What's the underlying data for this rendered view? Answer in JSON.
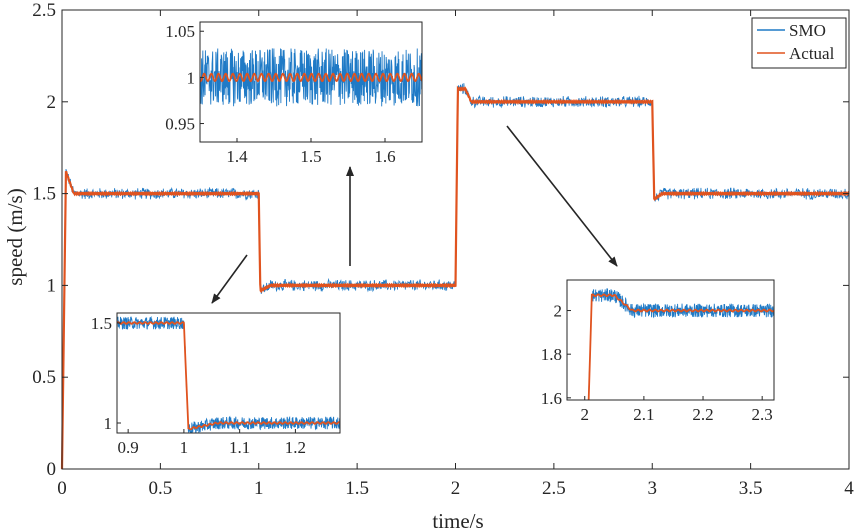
{
  "chart_data": {
    "type": "line",
    "xlabel": "time/s",
    "ylabel": "speed (m/s)",
    "xlim": [
      0,
      4
    ],
    "ylim": [
      0,
      2.5
    ],
    "x_ticks": [
      "0",
      "0.5",
      "1",
      "1.5",
      "2",
      "2.5",
      "3",
      "3.5",
      "4"
    ],
    "y_ticks": [
      "0",
      "0.5",
      "1",
      "1.5",
      "2",
      "2.5"
    ],
    "legend": {
      "placement": "top-right"
    },
    "colors": {
      "smo": "#1f7ac6",
      "actual": "#e0531f"
    },
    "series": [
      {
        "name": "SMO",
        "noise_amplitude": 0.035
      },
      {
        "name": "Actual",
        "segments": [
          {
            "t_start": 0,
            "t_end": 1,
            "value": 1.5,
            "overshoot": 1.62
          },
          {
            "t_start": 1,
            "t_end": 2,
            "value": 1.0,
            "undershoot": 0.97
          },
          {
            "t_start": 2,
            "t_end": 3,
            "value": 2.0,
            "overshoot": 2.07
          },
          {
            "t_start": 3,
            "t_end": 4,
            "value": 1.5,
            "undershoot": 1.47
          }
        ]
      }
    ],
    "insets": [
      {
        "xlim": [
          1.35,
          1.65
        ],
        "ylim": [
          0.93,
          1.06
        ],
        "x_ticks": [
          "1.4",
          "1.5",
          "1.6"
        ],
        "y_ticks": [
          "1.05",
          "1",
          "0.95"
        ]
      },
      {
        "xlim": [
          0.88,
          1.28
        ],
        "ylim": [
          0.95,
          1.55
        ],
        "x_ticks": [
          "0.9",
          "1",
          "1.1",
          "1.2"
        ],
        "y_ticks": [
          "1.5",
          "1"
        ]
      },
      {
        "xlim": [
          1.97,
          2.32
        ],
        "ylim": [
          1.59,
          2.14
        ],
        "x_ticks": [
          "2",
          "2.1",
          "2.2",
          "2.3"
        ],
        "y_ticks": [
          "2",
          "1.8",
          "1.6"
        ]
      }
    ]
  }
}
